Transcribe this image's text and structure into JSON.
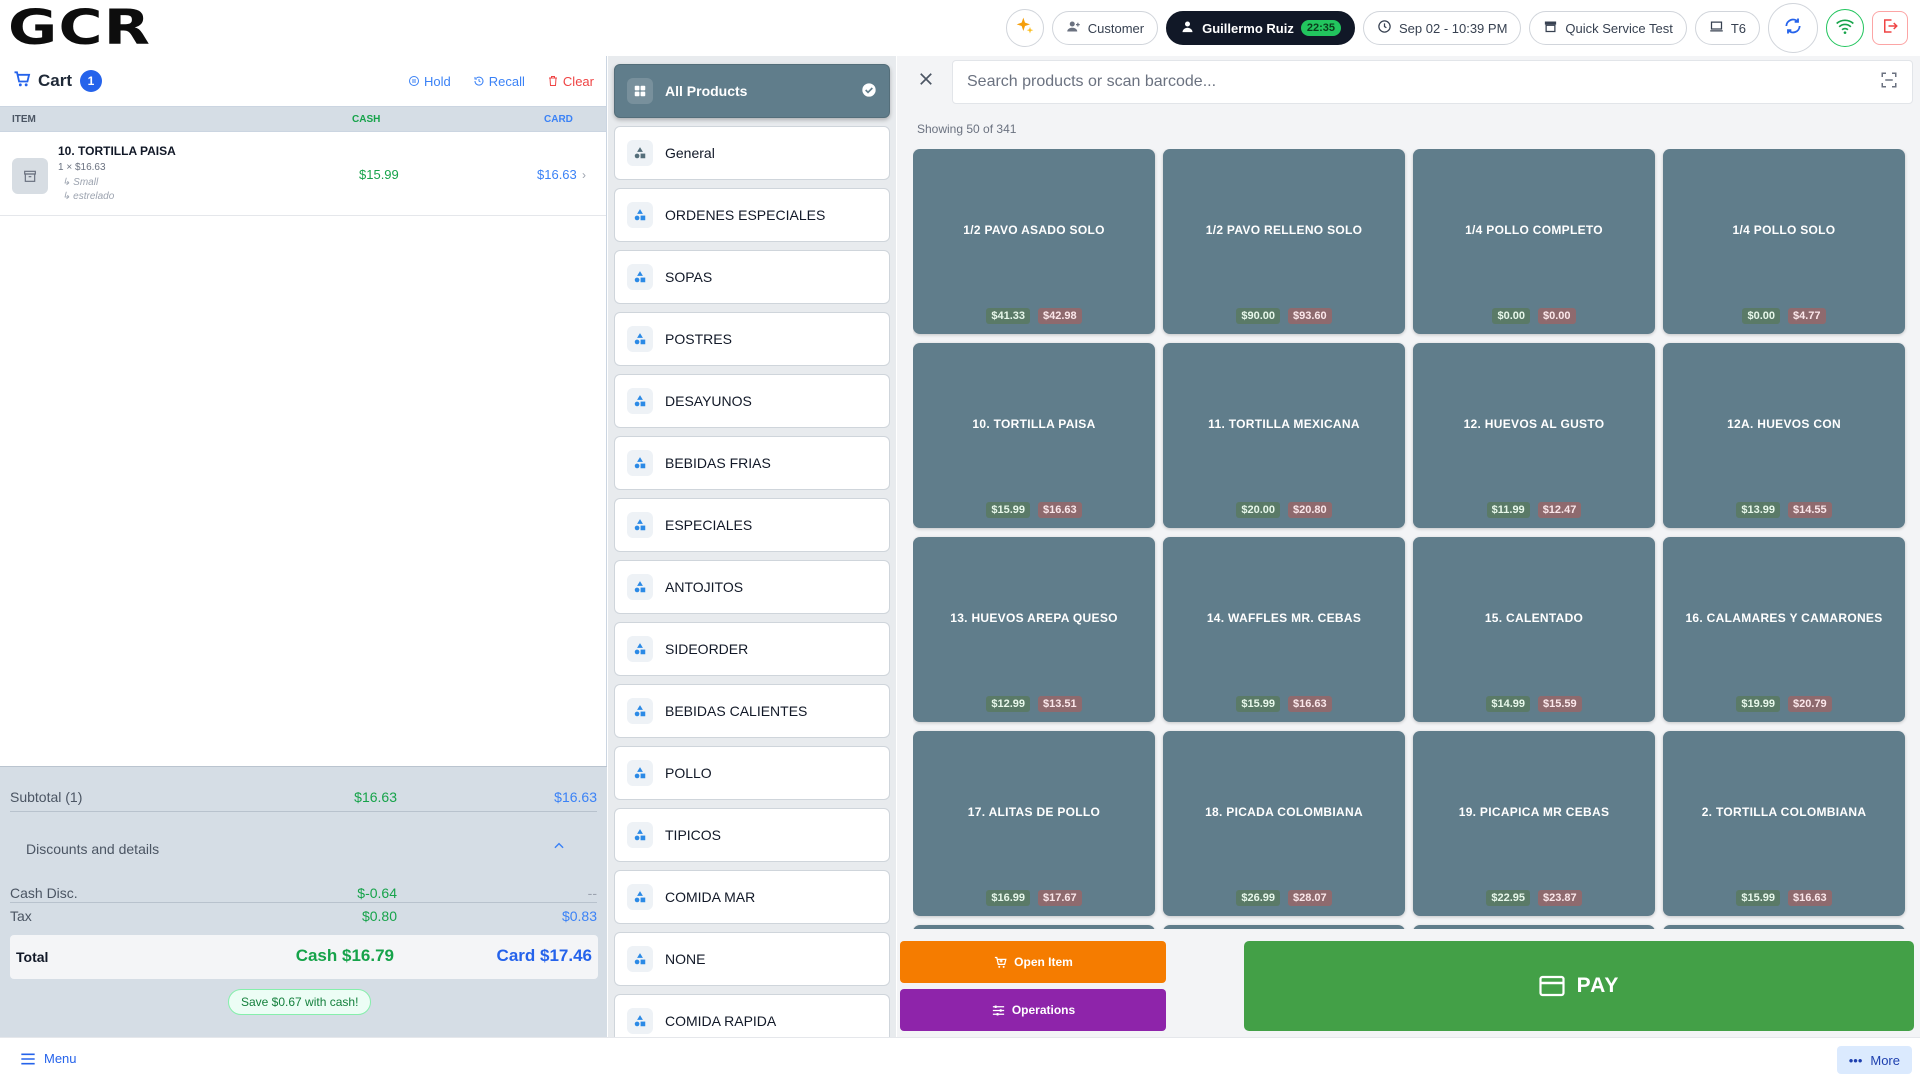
{
  "header": {
    "logo": "GCR",
    "customer_label": "Customer",
    "user_name": "Guillermo Ruiz",
    "user_timer": "22:35",
    "datetime": "Sep 02 - 10:39 PM",
    "store": "Quick Service Test",
    "terminal": "T6"
  },
  "cart": {
    "title": "Cart",
    "count": "1",
    "hold_label": "Hold",
    "recall_label": "Recall",
    "clear_label": "Clear",
    "columns": {
      "item": "ITEM",
      "cash": "CASH",
      "card": "CARD"
    },
    "items": [
      {
        "name": "10. TORTILLA PAISA",
        "qty": "1 × $16.63",
        "mod1": "↳ Small",
        "mod2": "↳ estrelado",
        "cash": "$15.99",
        "card": "$16.63"
      }
    ],
    "subtotal": {
      "label": "Subtotal (1)",
      "cash": "$16.63",
      "card": "$16.63"
    },
    "discounts_label": "Discounts and details",
    "cash_disc": {
      "label": "Cash Disc.",
      "cash": "$-0.64",
      "card": "--"
    },
    "tax": {
      "label": "Tax",
      "cash": "$0.80",
      "card": "$0.83"
    },
    "total": {
      "label": "Total",
      "cash": "Cash $16.79",
      "card": "Card $17.46"
    },
    "save_label": "Save $0.67 with cash!"
  },
  "categories": [
    {
      "label": "All Products",
      "active": true
    },
    {
      "label": "General"
    },
    {
      "label": "ORDENES ESPECIALES"
    },
    {
      "label": "SOPAS"
    },
    {
      "label": "POSTRES"
    },
    {
      "label": "DESAYUNOS"
    },
    {
      "label": "BEBIDAS FRIAS"
    },
    {
      "label": "ESPECIALES"
    },
    {
      "label": "ANTOJITOS"
    },
    {
      "label": "SIDEORDER"
    },
    {
      "label": "BEBIDAS CALIENTES"
    },
    {
      "label": "POLLO"
    },
    {
      "label": "TIPICOS"
    },
    {
      "label": "COMIDA MAR"
    },
    {
      "label": "NONE"
    },
    {
      "label": "COMIDA RAPIDA"
    }
  ],
  "search": {
    "placeholder": "Search products or scan barcode..."
  },
  "showing": "Showing 50 of 341",
  "products": [
    {
      "name": "1/2 PAVO ASADO SOLO",
      "cash": "$41.33",
      "card": "$42.98"
    },
    {
      "name": "1/2 PAVO RELLENO SOLO",
      "cash": "$90.00",
      "card": "$93.60"
    },
    {
      "name": "1/4 POLLO COMPLETO",
      "cash": "$0.00",
      "card": "$0.00"
    },
    {
      "name": "1/4 POLLO SOLO",
      "cash": "$0.00",
      "card": "$4.77"
    },
    {
      "name": "10. TORTILLA PAISA",
      "cash": "$15.99",
      "card": "$16.63"
    },
    {
      "name": "11. TORTILLA MEXICANA",
      "cash": "$20.00",
      "card": "$20.80"
    },
    {
      "name": "12. HUEVOS AL GUSTO",
      "cash": "$11.99",
      "card": "$12.47"
    },
    {
      "name": "12A. HUEVOS CON",
      "cash": "$13.99",
      "card": "$14.55"
    },
    {
      "name": "13. HUEVOS AREPA QUESO",
      "cash": "$12.99",
      "card": "$13.51"
    },
    {
      "name": "14. WAFFLES  MR. CEBAS",
      "cash": "$15.99",
      "card": "$16.63"
    },
    {
      "name": "15. CALENTADO",
      "cash": "$14.99",
      "card": "$15.59"
    },
    {
      "name": "16. CALAMARES Y CAMARONES",
      "cash": "$19.99",
      "card": "$20.79"
    },
    {
      "name": "17. ALITAS  DE POLLO",
      "cash": "$16.99",
      "card": "$17.67"
    },
    {
      "name": "18. PICADA COLOMBIANA",
      "cash": "$26.99",
      "card": "$28.07"
    },
    {
      "name": "19. PICAPICA MR CEBAS",
      "cash": "$22.95",
      "card": "$23.87"
    },
    {
      "name": "2. TORTILLA COLOMBIANA",
      "cash": "$15.99",
      "card": "$16.63"
    }
  ],
  "actions": {
    "open_item": "Open Item",
    "operations": "Operations",
    "pay": "PAY"
  },
  "footer": {
    "menu_label": "Menu",
    "more_label": "More"
  },
  "colors": {
    "product_tile": "#607d8b",
    "cash_green": "#16a34a",
    "card_blue": "#3b82f6",
    "open_item_orange": "#f57c00",
    "operations_purple": "#8e24aa",
    "pay_green": "#43a047"
  }
}
